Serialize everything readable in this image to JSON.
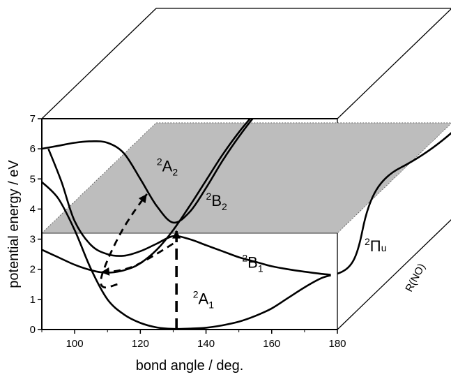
{
  "chart_data": {
    "type": "line",
    "title": "",
    "xlabel": "bond angle / deg.",
    "ylabel": "potential energy / eV",
    "depth_label": "R(NO)",
    "xlim": [
      90,
      180
    ],
    "ylim": [
      0,
      7
    ],
    "x_ticks": [
      "100",
      "120",
      "140",
      "160",
      "180"
    ],
    "y_ticks": [
      "0",
      "1",
      "2",
      "3",
      "4",
      "5",
      "6",
      "7"
    ],
    "plane_energy": 3.2,
    "series": [
      {
        "label": "2A1",
        "label_parts": [
          "2",
          "A",
          "1"
        ],
        "label_pos": [
          136,
          0.85
        ],
        "x": [
          90,
          95,
          100,
          105,
          110,
          115,
          120,
          125,
          130,
          135,
          140,
          145,
          150,
          155,
          160,
          165,
          170,
          175,
          178
        ],
        "y": [
          4.9,
          4.35,
          3.3,
          2.0,
          1.0,
          0.5,
          0.22,
          0.07,
          0.02,
          0.03,
          0.06,
          0.14,
          0.26,
          0.45,
          0.7,
          1.05,
          1.4,
          1.7,
          1.8
        ]
      },
      {
        "label": "2B1",
        "label_parts": [
          "2",
          "B",
          "1"
        ],
        "label_pos": [
          151,
          2.05
        ],
        "x": [
          92,
          96,
          100,
          105,
          110,
          115,
          120,
          125,
          130,
          135,
          140,
          145,
          150,
          155,
          160,
          165,
          170,
          175,
          178
        ],
        "y": [
          6.0,
          4.9,
          3.6,
          2.8,
          2.5,
          2.45,
          2.6,
          2.85,
          3.1,
          3.0,
          2.8,
          2.6,
          2.4,
          2.25,
          2.1,
          2.0,
          1.92,
          1.85,
          1.82
        ]
      },
      {
        "label": "2B2",
        "label_parts": [
          "2",
          "B",
          "2"
        ],
        "label_pos": [
          140,
          4.1
        ],
        "x": [
          90,
          95,
          100,
          104,
          108,
          112,
          116,
          120,
          125,
          130,
          135,
          140,
          145,
          150,
          155,
          160
        ],
        "y": [
          2.65,
          2.4,
          2.15,
          2.0,
          1.9,
          1.9,
          2.0,
          2.2,
          2.65,
          3.3,
          4.1,
          4.95,
          5.8,
          6.55,
          7.2,
          7.8
        ]
      },
      {
        "label": "2A2",
        "label_parts": [
          "2",
          "A",
          "2"
        ],
        "label_pos": [
          125,
          5.25
        ],
        "x": [
          90,
          95,
          100,
          105,
          110,
          115,
          120,
          125,
          130,
          135,
          140,
          145,
          150,
          155,
          160
        ],
        "y": [
          6.0,
          6.1,
          6.2,
          6.25,
          6.2,
          5.85,
          5.0,
          4.1,
          3.55,
          3.9,
          4.7,
          5.6,
          6.4,
          7.1,
          7.6
        ]
      }
    ],
    "arrows": [
      {
        "name": "excitation-arrow",
        "points": [
          [
            131,
            0.0
          ],
          [
            131,
            3.3
          ]
        ],
        "dashed": true
      },
      {
        "name": "relaxation-arrow-upper",
        "points": [
          [
            130,
            2.85
          ],
          [
            124,
            2.45
          ],
          [
            118,
            2.1
          ],
          [
            113,
            1.95
          ],
          [
            108,
            1.9
          ]
        ],
        "dashed": true
      },
      {
        "name": "relaxation-arrow-lower",
        "points": [
          [
            113,
            1.5
          ],
          [
            109,
            1.4
          ],
          [
            108,
            1.65
          ],
          [
            110,
            2.3
          ],
          [
            114,
            3.2
          ],
          [
            118,
            3.9
          ],
          [
            122,
            4.5
          ]
        ],
        "dashed": true
      }
    ],
    "right_curve": {
      "label": "2Πu",
      "label_parts": [
        "2",
        "Π",
        "u"
      ]
    },
    "grid": false,
    "legend": "none"
  }
}
